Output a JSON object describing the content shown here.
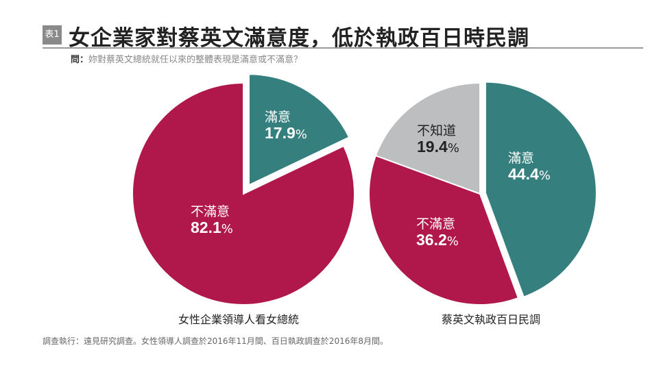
{
  "header": {
    "badge": "表1",
    "title": "女企業家對蔡英文滿意度，低於執政百日時民調",
    "question_label": "問：",
    "question": "妳對蔡英文總統就任以來的整體表現是滿意或不滿意？"
  },
  "footer": "調查執行：遠見研究調查。女性領導人調查於2016年11月間、百日執政調查於2016年8月間。",
  "colors": {
    "satisfied": "#35807f",
    "dissatisfied": "#b0174a",
    "unknown": "#bdbec0"
  },
  "chart_data": [
    {
      "type": "pie",
      "caption": "女性企業領導人看女總統",
      "slices": [
        {
          "label": "滿意",
          "value": 17.9,
          "display": "17.9",
          "exploded": true
        },
        {
          "label": "不滿意",
          "value": 82.1,
          "display": "82.1"
        }
      ]
    },
    {
      "type": "pie",
      "caption": "蔡英文執政百日民調",
      "slices": [
        {
          "label": "滿意",
          "value": 44.4,
          "display": "44.4",
          "exploded": true
        },
        {
          "label": "不滿意",
          "value": 36.2,
          "display": "36.2"
        },
        {
          "label": "不知道",
          "value": 19.4,
          "display": "19.4"
        }
      ]
    }
  ],
  "pct": "%"
}
